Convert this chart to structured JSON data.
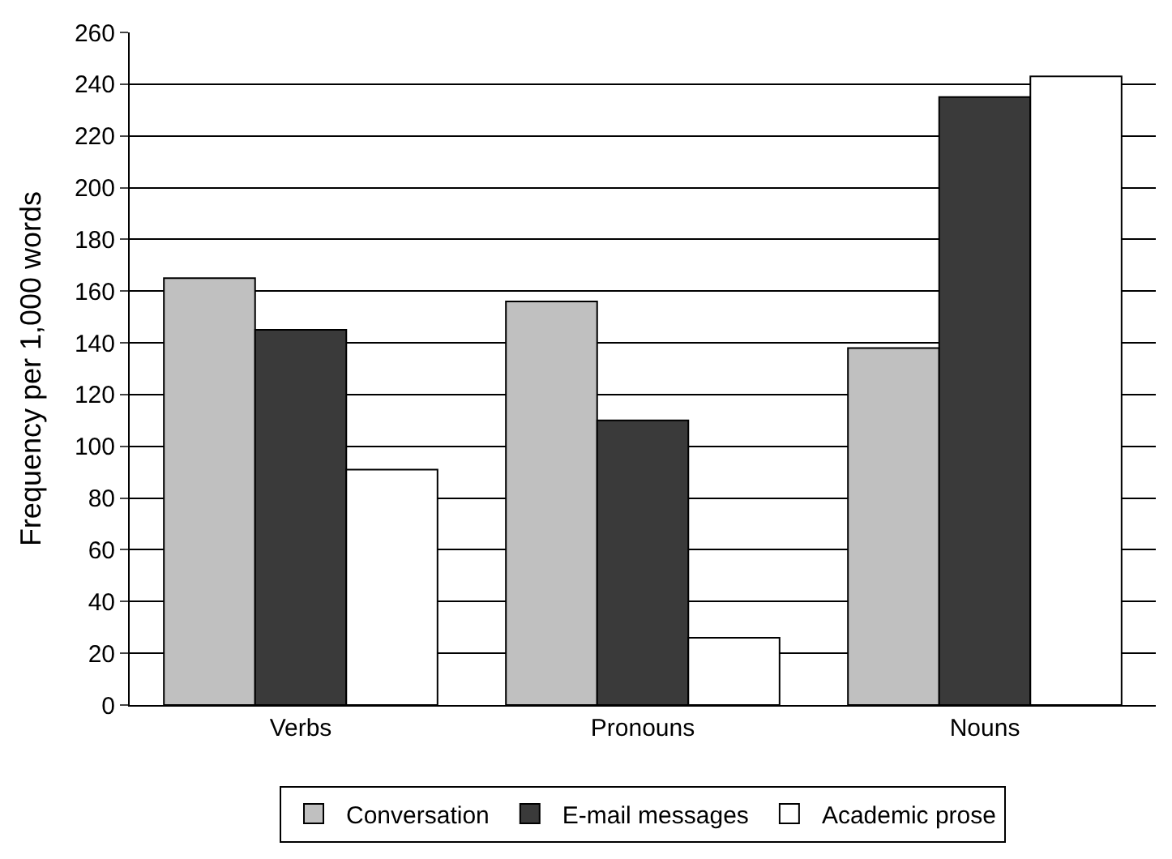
{
  "chart_data": {
    "type": "bar",
    "ylabel": "Frequency per 1,000 words",
    "categories": [
      "Verbs",
      "Pronouns",
      "Nouns"
    ],
    "series": [
      {
        "name": "Conversation",
        "color": "#c0c0c0",
        "values": [
          165,
          156,
          138
        ]
      },
      {
        "name": "E-mail messages",
        "color": "#3a3a3a",
        "values": [
          145,
          110,
          235
        ]
      },
      {
        "name": "Academic prose",
        "color": "#ffffff",
        "values": [
          91,
          26,
          243
        ]
      }
    ],
    "ylim": [
      0,
      260
    ],
    "yticks": [
      0,
      20,
      40,
      60,
      80,
      100,
      120,
      140,
      160,
      180,
      200,
      220,
      240,
      260
    ],
    "grid": "y",
    "legend": "bottom"
  }
}
